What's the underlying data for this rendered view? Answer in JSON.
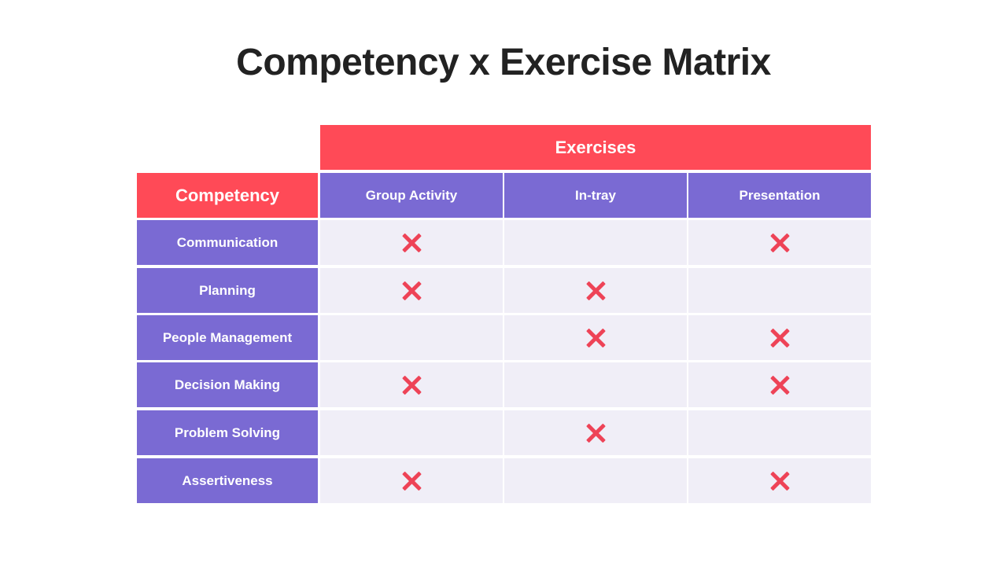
{
  "title": "Competency x Exercise Matrix",
  "table": {
    "exercises_header": "Exercises",
    "competency_header": "Competency",
    "columns": [
      "Group Activity",
      "In-tray",
      "Presentation"
    ],
    "rows": [
      {
        "label": "Communication",
        "marks": [
          true,
          false,
          true
        ]
      },
      {
        "label": "Planning",
        "marks": [
          true,
          true,
          false
        ]
      },
      {
        "label": "People Management",
        "marks": [
          false,
          true,
          true
        ]
      },
      {
        "label": "Decision Making",
        "marks": [
          true,
          false,
          true
        ]
      },
      {
        "label": "Problem Solving",
        "marks": [
          false,
          true,
          false
        ]
      },
      {
        "label": "Assertiveness",
        "marks": [
          true,
          false,
          true
        ]
      }
    ]
  },
  "colors": {
    "accent_red": "#FF4A57",
    "purple": "#7A6AD3",
    "cell_bg": "#F0EEF7",
    "mark": "#EE4357"
  },
  "icons": {
    "mark": "cross-mark-icon"
  }
}
